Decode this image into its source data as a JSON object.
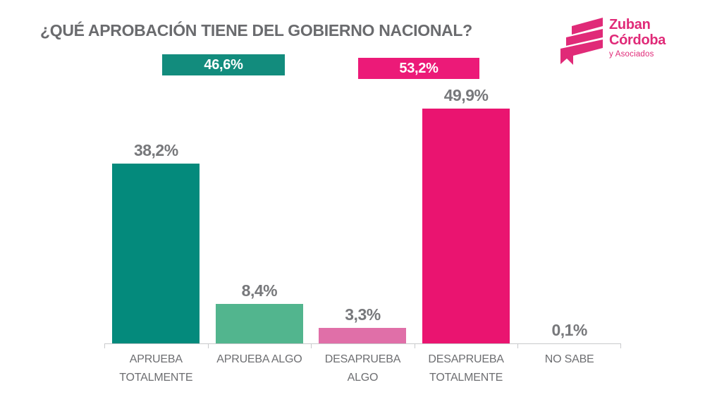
{
  "title": "¿QUÉ APROBACIÓN TIENE DEL GOBIERNO NACIONAL?",
  "logo": {
    "line1": "Zuban",
    "line2": "Córdoba",
    "line3": "y Asociados",
    "color": "#e02a78"
  },
  "summary_badges": [
    {
      "name": "total-approve",
      "label": "46,6%",
      "color": "#128c7d"
    },
    {
      "name": "total-disapprove",
      "label": "53,2%",
      "color": "#ec1a78"
    }
  ],
  "chart_data": {
    "type": "bar",
    "title": "¿QUÉ APROBACIÓN TIENE DEL GOBIERNO NACIONAL?",
    "categories": [
      "APRUEBA TOTALMENTE",
      "APRUEBA ALGO",
      "DESAPRUEBA ALGO",
      "DESAPRUEBA TOTALMENTE",
      "NO SABE"
    ],
    "category_lines": [
      [
        "APRUEBA",
        "TOTALMENTE"
      ],
      [
        "APRUEBA ALGO"
      ],
      [
        "DESAPRUEBA",
        "ALGO"
      ],
      [
        "DESAPRUEBA",
        "TOTALMENTE"
      ],
      [
        "NO SABE"
      ]
    ],
    "values": [
      38.2,
      8.4,
      3.3,
      49.9,
      0.1
    ],
    "value_labels": [
      "38,2%",
      "8,4%",
      "3,3%",
      "49,9%",
      "0,1%"
    ],
    "bar_colors": [
      "#048a7c",
      "#52b58e",
      "#e06fa8",
      "#ea1470",
      null
    ],
    "xlabel": "",
    "ylabel": "",
    "ylim": [
      0,
      52
    ],
    "grid": false,
    "legend": false,
    "axis_color": "#c9cacc",
    "value_label_color": "#77787b",
    "category_label_color": "#6d6e71"
  }
}
